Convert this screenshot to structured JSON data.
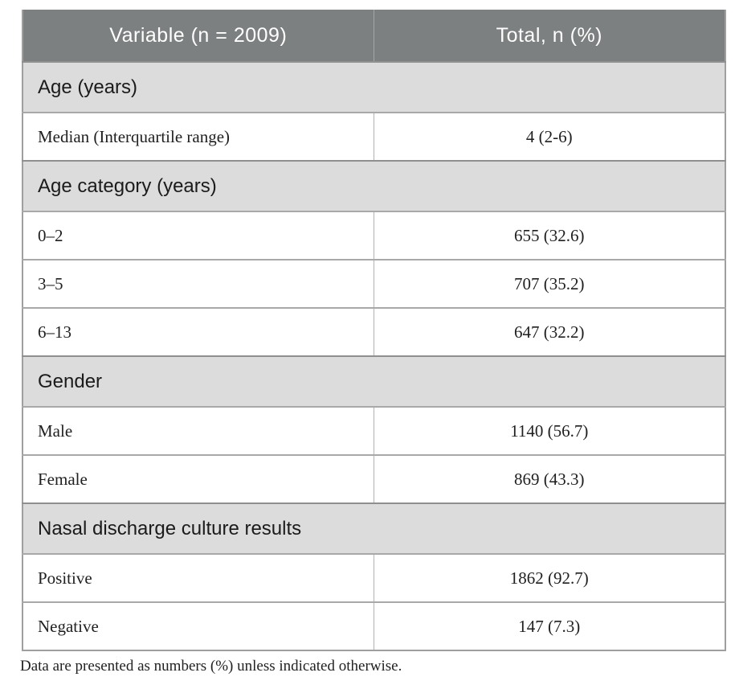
{
  "table": {
    "header": {
      "col_variable": "Variable (n = 2009)",
      "col_total": "Total, n (%)"
    },
    "sections": [
      {
        "title": "Age (years)",
        "rows": [
          {
            "label": "Median (Interquartile range)",
            "value": "4 (2-6)"
          }
        ]
      },
      {
        "title": "Age category (years)",
        "rows": [
          {
            "label": "0–2",
            "value": "655 (32.6)"
          },
          {
            "label": "3–5",
            "value": "707 (35.2)"
          },
          {
            "label": "6–13",
            "value": "647 (32.2)"
          }
        ]
      },
      {
        "title": "Gender",
        "rows": [
          {
            "label": "Male",
            "value": "1140 (56.7)"
          },
          {
            "label": "Female",
            "value": "869 (43.3)"
          }
        ]
      },
      {
        "title": "Nasal discharge culture results",
        "rows": [
          {
            "label": "Positive",
            "value": "1862 (92.7)"
          },
          {
            "label": "Negative",
            "value": "147 (7.3)"
          }
        ]
      }
    ],
    "footnote": "Data are presented as numbers (%) unless indicated otherwise."
  },
  "colors": {
    "header_bg": "#7d8080",
    "header_text": "#ffffff",
    "section_bg": "#dcdcdc",
    "row_bg": "#ffffff",
    "border": "#a0a0a0",
    "text": "#1f1f1f"
  }
}
